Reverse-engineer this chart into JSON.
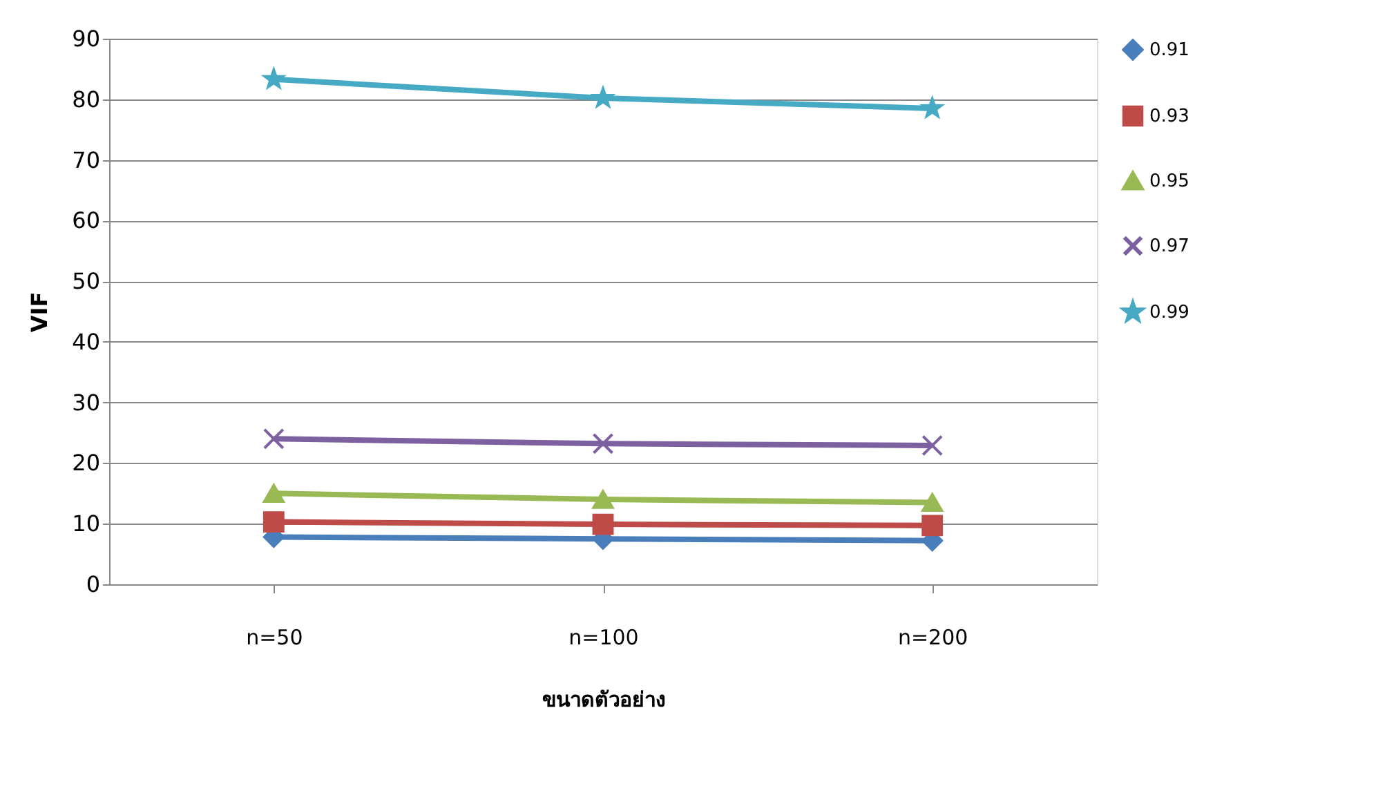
{
  "chart_data": {
    "type": "line",
    "xlabel": "ขนาดตัวอย่าง",
    "ylabel": "VIF",
    "categories": [
      "n=50",
      "n=100",
      "n=200"
    ],
    "series": [
      {
        "name": "0.91",
        "color": "#4a7ebb",
        "marker": "diamond",
        "values": [
          7.8,
          7.5,
          7.2
        ]
      },
      {
        "name": "0.93",
        "color": "#be4b48",
        "marker": "square",
        "values": [
          10.3,
          9.9,
          9.7
        ]
      },
      {
        "name": "0.95",
        "color": "#98b954",
        "marker": "triangle",
        "values": [
          15.0,
          14.0,
          13.5
        ]
      },
      {
        "name": "0.97",
        "color": "#7d60a0",
        "marker": "cross",
        "values": [
          24.0,
          23.2,
          22.9
        ]
      },
      {
        "name": "0.99",
        "color": "#46aac5",
        "marker": "star",
        "values": [
          83.3,
          80.2,
          78.5
        ]
      }
    ],
    "ylim": [
      0,
      90
    ],
    "yticks": [
      0,
      10,
      20,
      30,
      40,
      50,
      60,
      70,
      80,
      90
    ],
    "grid": "y",
    "legend": "right",
    "line_style": "solid"
  }
}
